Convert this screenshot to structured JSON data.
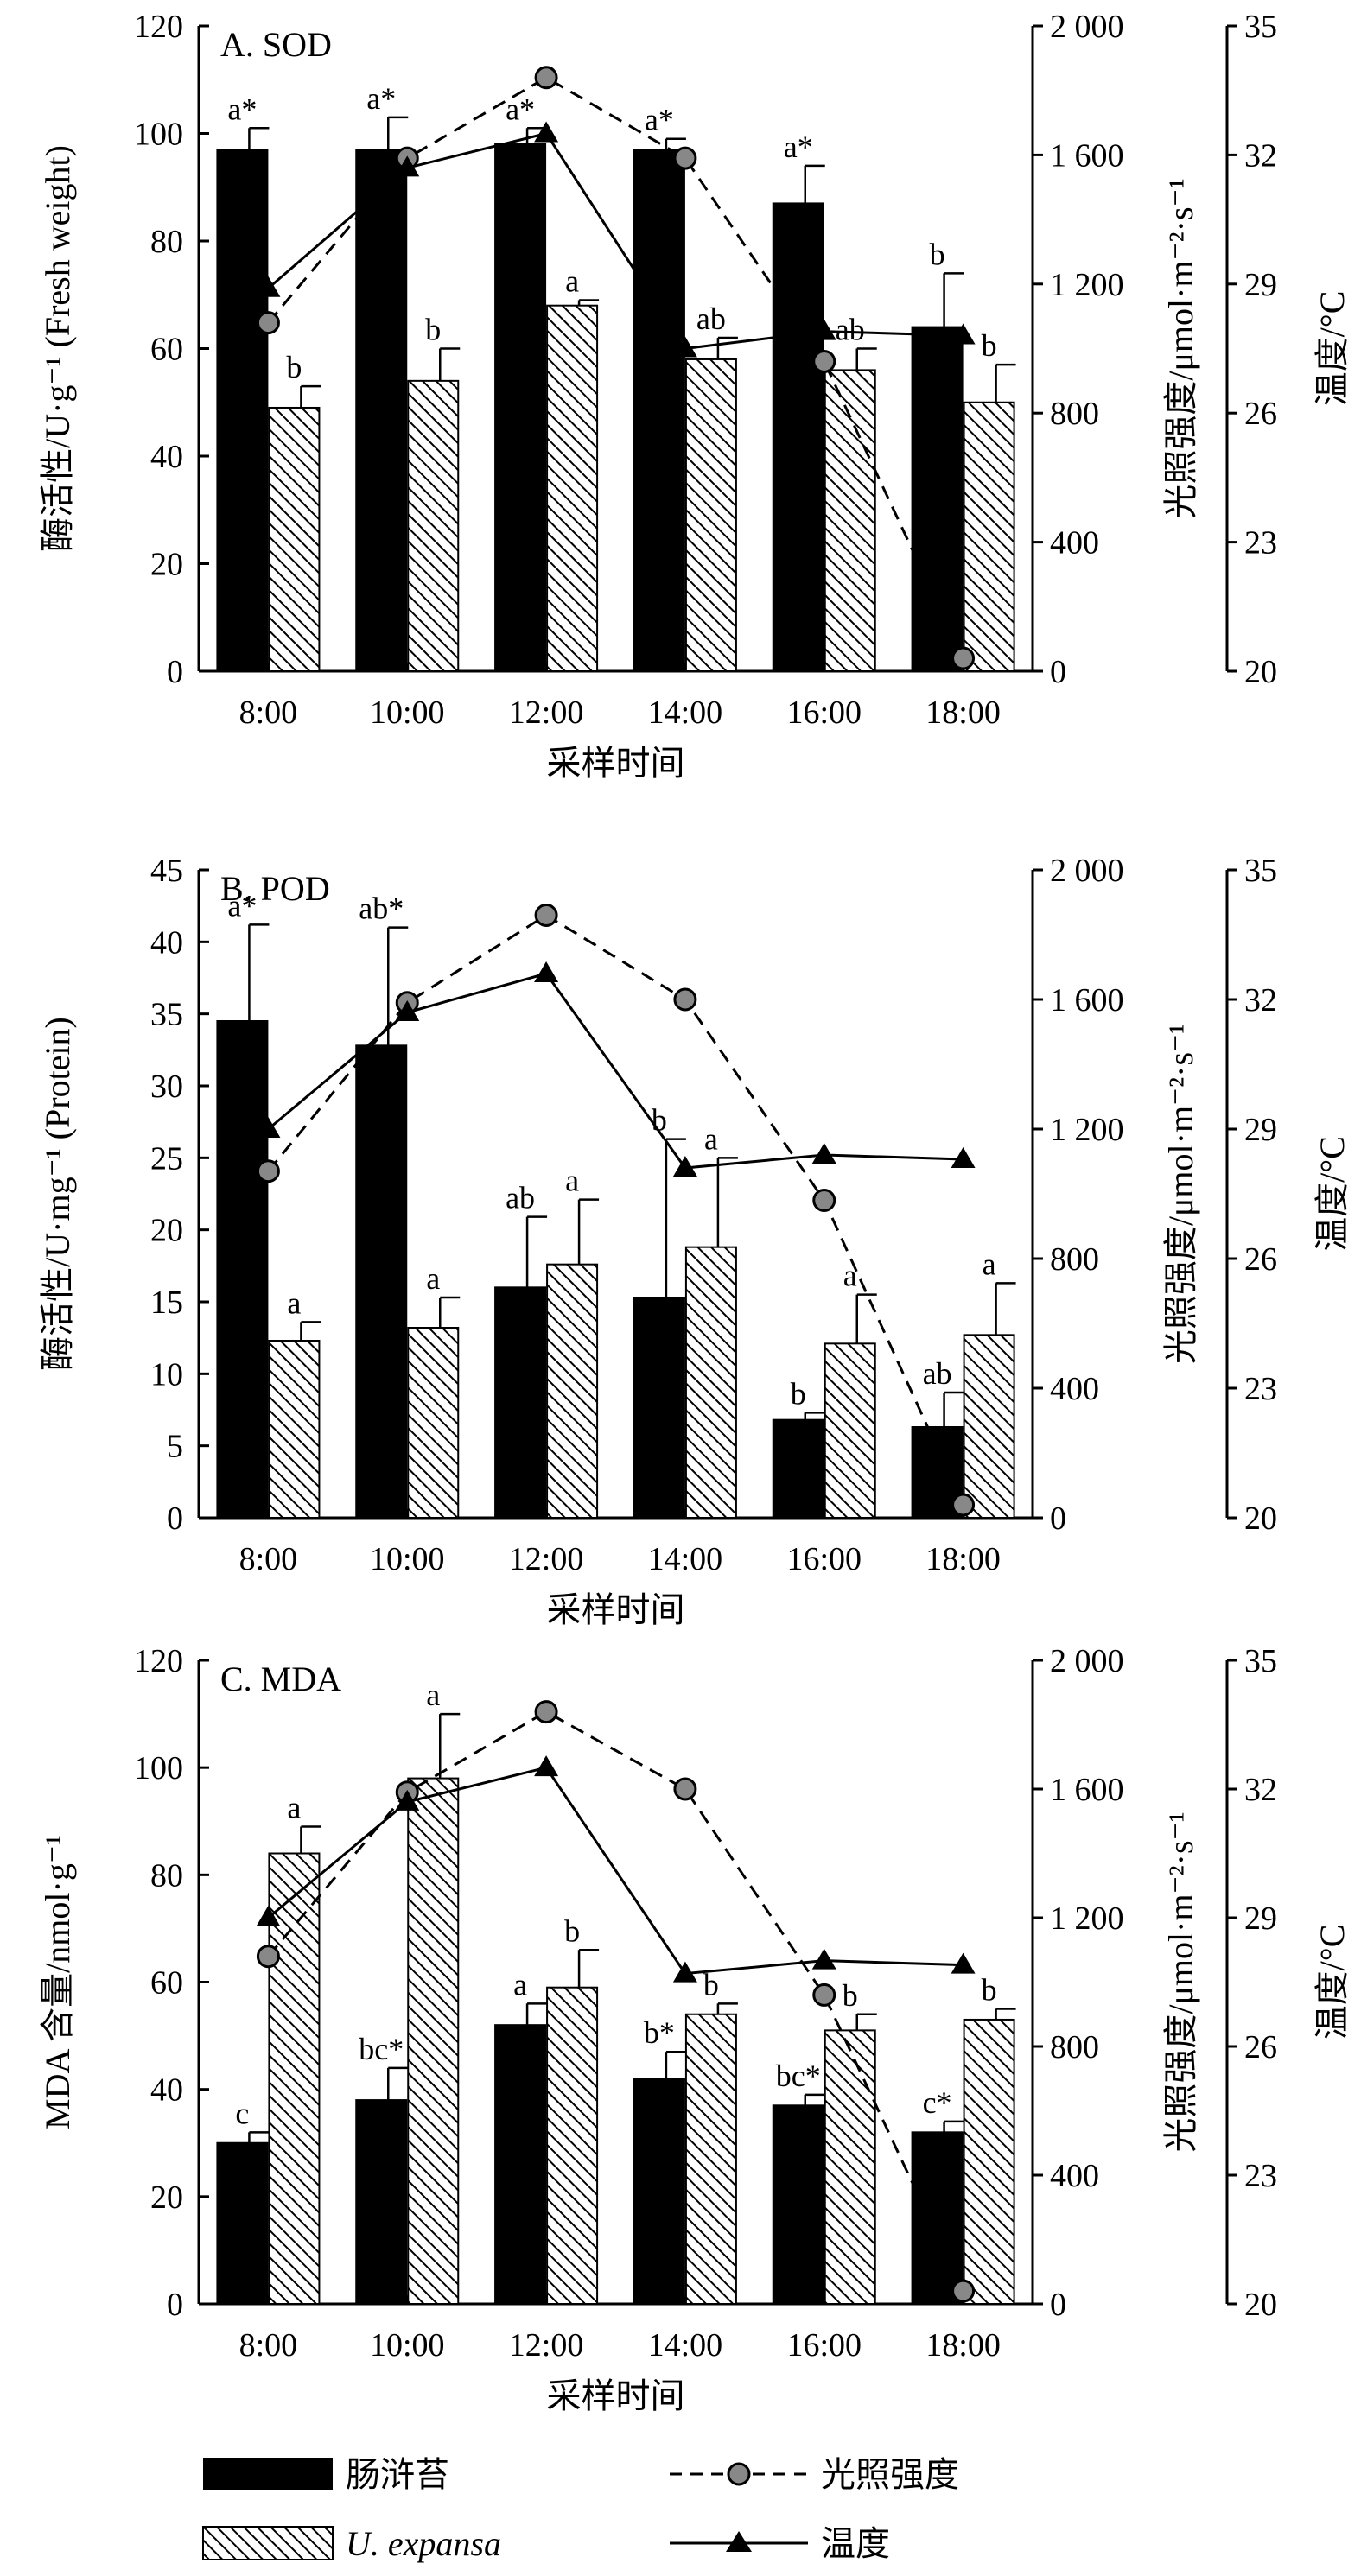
{
  "chart_data": [
    {
      "type": "bar",
      "title": "A. SOD",
      "categories": [
        "8:00",
        "10:00",
        "12:00",
        "14:00",
        "16:00",
        "18:00"
      ],
      "xlabel": "采样时间",
      "ylabel": "酶活性/U·g⁻¹ (Fresh weight)",
      "ylim": [
        0,
        120
      ],
      "yticks": [
        "0",
        "20",
        "40",
        "60",
        "80",
        "100",
        "120"
      ],
      "y2label": "光照强度/μmol·m⁻²·s⁻¹",
      "y2lim": [
        0,
        2000
      ],
      "y2ticks": [
        "0",
        "400",
        "800",
        "1 200",
        "1 600",
        "2 000"
      ],
      "y3label": "温度/°C",
      "y3lim": [
        20,
        35
      ],
      "y3ticks": [
        "20",
        "23",
        "26",
        "29",
        "32",
        "35"
      ],
      "series": [
        {
          "name": "肠浒苔",
          "values": [
            97,
            97,
            98,
            97,
            87,
            64
          ],
          "errors": [
            4,
            6,
            3,
            2,
            7,
            10
          ],
          "labels": [
            "a*",
            "a*",
            "a*",
            "a*",
            "a*",
            "b"
          ]
        },
        {
          "name": "U. expansa",
          "values": [
            49,
            54,
            68,
            58,
            56,
            50
          ],
          "errors": [
            4,
            6,
            1,
            4,
            4,
            7
          ],
          "labels": [
            "b",
            "b",
            "a",
            "ab",
            "ab",
            "b"
          ]
        },
        {
          "name": "光照强度",
          "axis": "y2",
          "values": [
            1080,
            1590,
            1840,
            1590,
            960,
            40
          ]
        },
        {
          "name": "温度",
          "axis": "y3",
          "values": [
            28.9,
            31.7,
            32.5,
            27.5,
            27.9,
            27.8
          ]
        }
      ]
    },
    {
      "type": "bar",
      "title": "B. POD",
      "categories": [
        "8:00",
        "10:00",
        "12:00",
        "14:00",
        "16:00",
        "18:00"
      ],
      "xlabel": "采样时间",
      "ylabel": "酶活性/U·mg⁻¹ (Protein)",
      "ylim": [
        0,
        45
      ],
      "yticks": [
        "0",
        "5",
        "10",
        "15",
        "20",
        "25",
        "30",
        "35",
        "40",
        "45"
      ],
      "y2label": "光照强度/μmol·m⁻²·s⁻¹",
      "y2lim": [
        0,
        2000
      ],
      "y2ticks": [
        "0",
        "400",
        "800",
        "1 200",
        "1 600",
        "2 000"
      ],
      "y3label": "温度/°C",
      "y3lim": [
        20,
        35
      ],
      "y3ticks": [
        "20",
        "23",
        "26",
        "29",
        "32",
        "35"
      ],
      "series": [
        {
          "name": "肠浒苔",
          "values": [
            34.5,
            32.8,
            16.0,
            15.3,
            6.8,
            6.3
          ],
          "errors": [
            6.7,
            8.2,
            4.9,
            11.0,
            0.5,
            2.4
          ],
          "labels": [
            "a*",
            "ab*",
            "ab",
            "b",
            "b",
            "ab"
          ]
        },
        {
          "name": "U. expansa",
          "values": [
            12.3,
            13.2,
            17.6,
            18.8,
            12.1,
            12.7
          ],
          "errors": [
            1.3,
            2.1,
            4.5,
            6.2,
            3.4,
            3.6
          ],
          "labels": [
            "a",
            "a",
            "a",
            "a",
            "a",
            "a"
          ]
        },
        {
          "name": "光照强度",
          "axis": "y2",
          "values": [
            1070,
            1590,
            1860,
            1600,
            980,
            40
          ]
        },
        {
          "name": "温度",
          "axis": "y3",
          "values": [
            29.0,
            31.7,
            32.6,
            28.1,
            28.4,
            28.3
          ]
        }
      ]
    },
    {
      "type": "bar",
      "title": "C. MDA",
      "categories": [
        "8:00",
        "10:00",
        "12:00",
        "14:00",
        "16:00",
        "18:00"
      ],
      "xlabel": "采样时间",
      "ylabel": "MDA 含量/nmol·g⁻¹",
      "ylim": [
        0,
        120
      ],
      "yticks": [
        "0",
        "20",
        "40",
        "60",
        "80",
        "100",
        "120"
      ],
      "y2label": "光照强度/μmol·m⁻²·s⁻¹",
      "y2lim": [
        0,
        2000
      ],
      "y2ticks": [
        "0",
        "400",
        "800",
        "1 200",
        "1 600",
        "2 000"
      ],
      "y3label": "温度/°C",
      "y3lim": [
        20,
        35
      ],
      "y3ticks": [
        "20",
        "23",
        "26",
        "29",
        "32",
        "35"
      ],
      "series": [
        {
          "name": "肠浒苔",
          "values": [
            30,
            38,
            52,
            42,
            37,
            32
          ],
          "errors": [
            2,
            6,
            4,
            5,
            2,
            2
          ],
          "labels": [
            "c",
            "bc*",
            "a",
            "b*",
            "bc*",
            "c*"
          ]
        },
        {
          "name": "U. expansa",
          "values": [
            84,
            98,
            59,
            54,
            51,
            53
          ],
          "errors": [
            5,
            12,
            7,
            2,
            3,
            2
          ],
          "labels": [
            "a",
            "a",
            "b",
            "b",
            "b",
            "b"
          ]
        },
        {
          "name": "光照强度",
          "axis": "y2",
          "values": [
            1080,
            1590,
            1840,
            1600,
            960,
            40
          ]
        },
        {
          "name": "温度",
          "axis": "y3",
          "values": [
            29.0,
            31.7,
            32.5,
            27.7,
            28.0,
            27.9
          ]
        }
      ]
    }
  ],
  "legend": {
    "bar1_label": "肠浒苔",
    "bar2_label": "U. expansa",
    "line1_label": "光照强度",
    "line2_label": "温度"
  }
}
